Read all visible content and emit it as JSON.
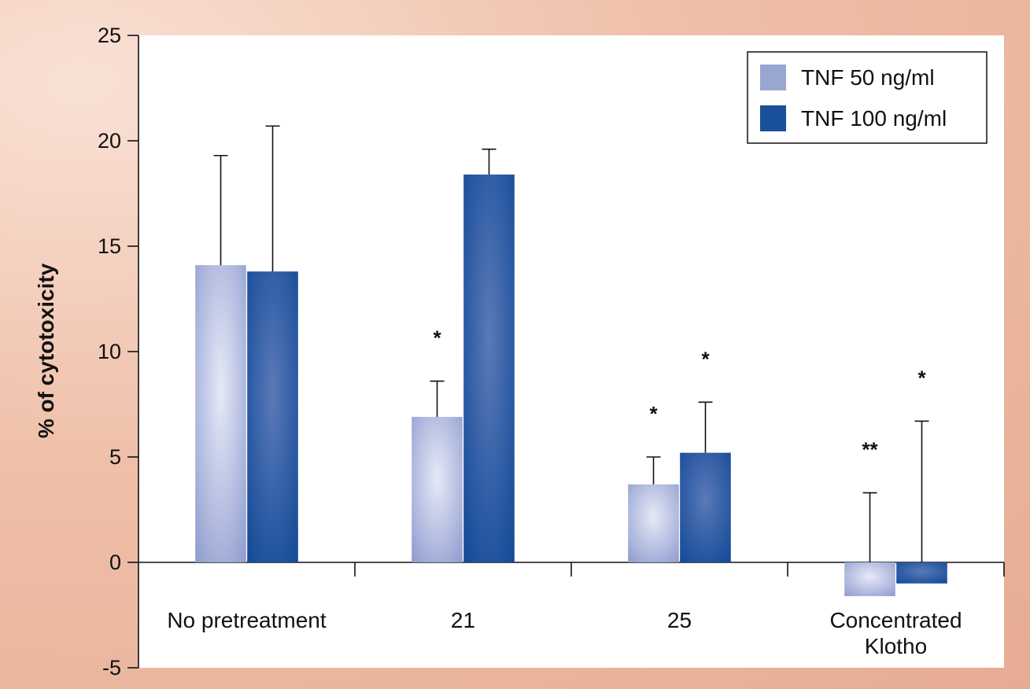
{
  "chart_data": {
    "type": "bar",
    "ylabel": "% of cytotoxicity",
    "xlabel": "",
    "ylim": [
      -5,
      25
    ],
    "yticks": [
      25,
      20,
      15,
      10,
      5,
      0,
      -5
    ],
    "categories": [
      [
        "No pretreatment"
      ],
      [
        "21"
      ],
      [
        "25"
      ],
      [
        "Concentrated",
        "Klotho"
      ]
    ],
    "series": [
      {
        "name": "TNF 50 ng/ml",
        "color": "#9aa6d2",
        "values": [
          14.1,
          6.9,
          3.7,
          -1.6
        ],
        "errors": [
          5.2,
          1.7,
          1.3,
          3.3
        ],
        "annotations": [
          "",
          "*",
          "*",
          "**"
        ]
      },
      {
        "name": "TNF 100 ng/ml",
        "color": "#1a4f9a",
        "values": [
          13.8,
          18.4,
          5.2,
          -1.0
        ],
        "errors": [
          6.9,
          1.2,
          2.4,
          6.7
        ],
        "annotations": [
          "",
          "",
          "*",
          "*"
        ]
      }
    ],
    "legend": "top-right",
    "grid": false
  }
}
